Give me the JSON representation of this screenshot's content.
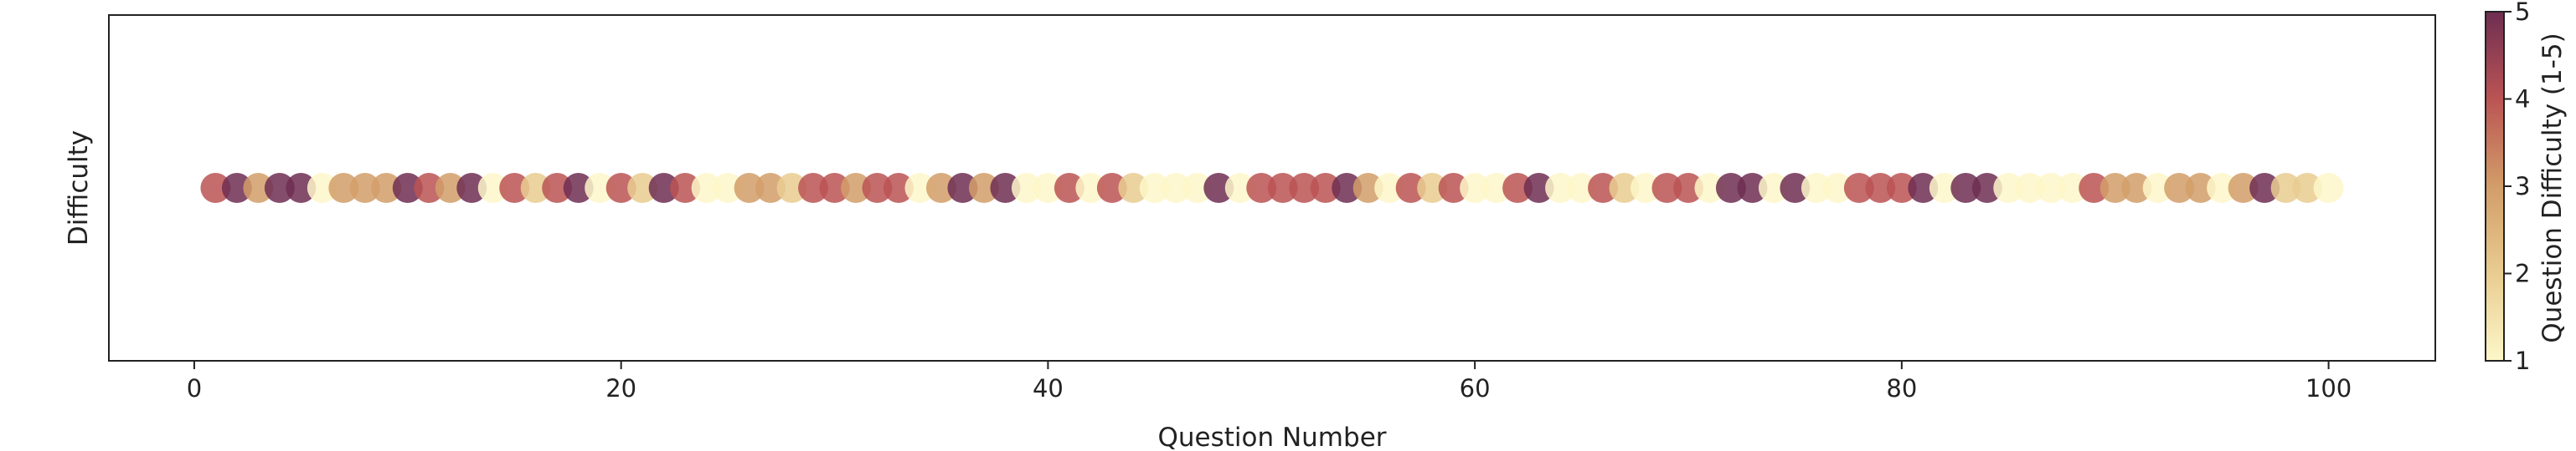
{
  "chart_data": {
    "type": "scatter",
    "title": "",
    "xlabel": "Question Number",
    "ylabel": "Difficulty",
    "xlim": [
      -4,
      105
    ],
    "xticks": [
      0,
      20,
      40,
      60,
      80,
      100
    ],
    "yticks": [],
    "grid": false,
    "y_constant": 0,
    "colorbar": {
      "label": "Question Difficulty (1-5)",
      "range": [
        1,
        5
      ],
      "ticks": [
        1,
        2,
        3,
        4,
        5
      ],
      "colormap": "YlOrBr-Purple",
      "colors": [
        "#fdf7c9",
        "#e9cc90",
        "#d29d68",
        "#bb5454",
        "#6e2e52"
      ]
    },
    "series": [
      {
        "x": [
          1,
          2,
          3,
          4,
          5,
          6,
          7,
          8,
          9,
          10,
          11,
          12,
          13,
          14,
          15,
          16,
          17,
          18,
          19,
          20,
          21,
          22,
          23,
          24,
          25,
          26,
          27,
          28,
          29,
          30,
          31,
          32,
          33,
          34,
          35,
          36,
          37,
          38,
          39,
          40,
          41,
          42,
          43,
          44,
          45,
          46,
          47,
          48,
          49,
          50,
          51,
          52,
          53,
          54,
          55,
          56,
          57,
          58,
          59,
          60,
          61,
          62,
          63,
          64,
          65,
          66,
          67,
          68,
          69,
          70,
          71,
          72,
          73,
          74,
          75,
          76,
          77,
          78,
          79,
          80,
          81,
          82,
          83,
          84,
          85,
          86,
          87,
          88,
          89,
          90,
          91,
          92,
          93,
          94,
          95,
          96,
          97,
          98,
          99,
          100
        ],
        "difficulty": [
          4,
          5,
          3,
          5,
          5,
          1,
          3,
          3,
          3,
          5,
          4,
          3,
          5,
          1,
          4,
          2,
          4,
          5,
          1,
          4,
          2,
          5,
          4,
          1,
          1,
          3,
          3,
          2,
          4,
          4,
          3,
          4,
          4,
          1,
          3,
          5,
          3,
          5,
          1,
          1,
          4,
          1,
          4,
          2,
          1,
          1,
          1,
          5,
          1,
          4,
          4,
          4,
          4,
          5,
          3,
          1,
          4,
          2,
          4,
          1,
          1,
          4,
          5,
          1,
          1,
          4,
          2,
          1,
          4,
          4,
          1,
          5,
          5,
          1,
          5,
          1,
          1,
          4,
          4,
          4,
          5,
          1,
          5,
          5,
          1,
          1,
          1,
          1,
          4,
          3,
          3,
          1,
          3,
          3,
          1,
          3,
          5,
          2,
          2,
          1
        ]
      }
    ]
  }
}
